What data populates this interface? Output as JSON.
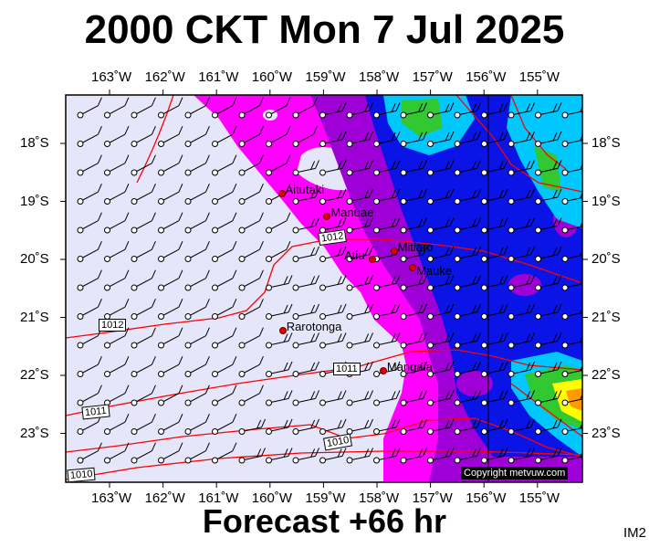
{
  "header": {
    "title": "2000 CKT Mon 7 Jul 2025"
  },
  "footer": {
    "forecast": "Forecast +66 hr",
    "code": "IM2"
  },
  "copyright": "Copyright metvuw.com",
  "map_data": {
    "longitudes": [
      "163˚W",
      "162˚W",
      "161˚W",
      "160˚W",
      "159˚W",
      "158˚W",
      "157˚W",
      "156˚W",
      "155˚W"
    ],
    "latitudes": [
      "18˚S",
      "19˚S",
      "20˚S",
      "21˚S",
      "22˚S",
      "23˚S"
    ],
    "places": [
      {
        "name": "Aitutaki",
        "lon": -159.8,
        "lat": -18.85
      },
      {
        "name": "Manuae",
        "lon": -158.95,
        "lat": -19.25
      },
      {
        "name": "Atiu",
        "lon": -158.1,
        "lat": -19.98
      },
      {
        "name": "Mitiaro",
        "lon": -157.7,
        "lat": -19.85
      },
      {
        "name": "Mauke",
        "lon": -157.35,
        "lat": -20.13
      },
      {
        "name": "Rarotonga",
        "lon": -159.78,
        "lat": -21.22
      },
      {
        "name": "Mangaia",
        "lon": -157.9,
        "lat": -21.9
      }
    ],
    "isobars": [
      "1012",
      "1012",
      "1011",
      "1011",
      "1010",
      "1010"
    ],
    "colors": {
      "background": "#e6e6fa",
      "magenta": "#ff00ff",
      "purple": "#a000d8",
      "blue": "#0a14e6",
      "cyan": "#00c8ff",
      "green": "#32c832",
      "yellow": "#ffff00",
      "isobar": "#ff0000",
      "place": "#e10000"
    }
  }
}
